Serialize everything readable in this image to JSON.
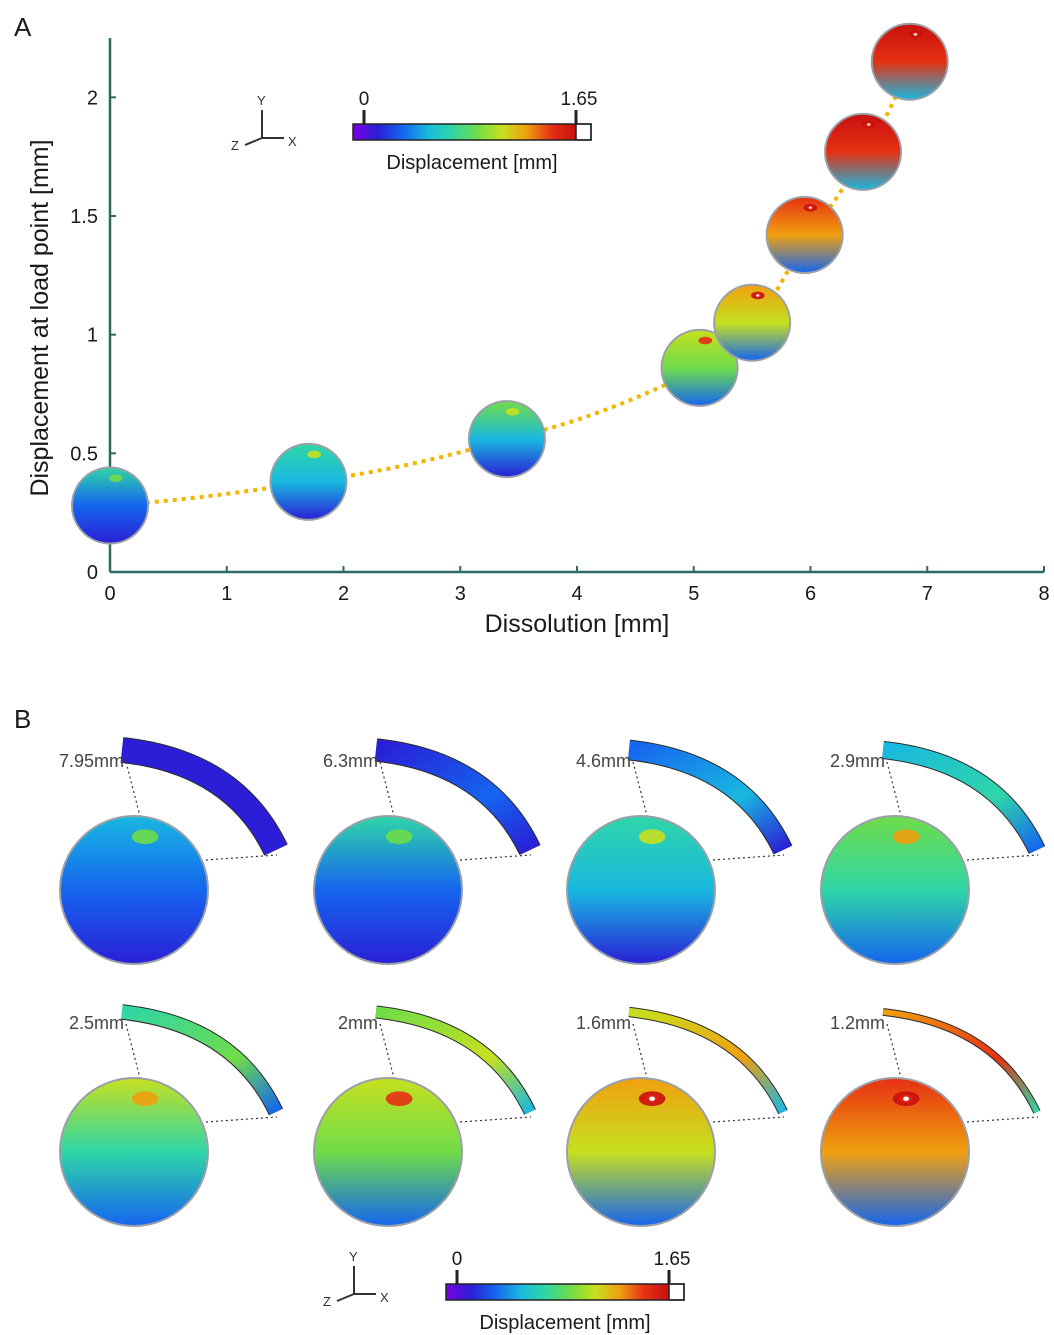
{
  "figure": {
    "panel_a_label": "A",
    "panel_b_label": "B"
  },
  "colors": {
    "axis": "#2b6b63",
    "trend": "#f2b600",
    "colormap": [
      "#7a00e6",
      "#2a1fd6",
      "#1565ef",
      "#19b8e0",
      "#2fd6a7",
      "#6fdc49",
      "#c6e01f",
      "#f0a010",
      "#e63012",
      "#c81010"
    ],
    "over_range": "#ffffff"
  },
  "colorbar": {
    "min_label": "0",
    "max_label": "1.65",
    "title": "Displacement [mm]"
  },
  "triad": {
    "y": "Y",
    "x": "X",
    "z": "Z"
  },
  "chart_data": {
    "type": "scatter",
    "xlabel": "Dissolution [mm]",
    "ylabel": "Displacement at load point [mm]",
    "xlim": [
      0,
      8
    ],
    "ylim": [
      0,
      2.25
    ],
    "xticks": [
      "0",
      "1",
      "2",
      "3",
      "4",
      "5",
      "6",
      "7",
      "8"
    ],
    "yticks": [
      "0",
      "0.5",
      "1",
      "1.5",
      "2"
    ],
    "grid": false,
    "points": [
      {
        "x": 0.0,
        "y": 0.28,
        "max_disp": 0.3
      },
      {
        "x": 1.7,
        "y": 0.38,
        "max_disp": 0.4
      },
      {
        "x": 3.4,
        "y": 0.56,
        "max_disp": 0.58
      },
      {
        "x": 5.05,
        "y": 0.86,
        "max_disp": 0.9
      },
      {
        "x": 5.5,
        "y": 1.05,
        "max_disp": 1.1
      },
      {
        "x": 5.95,
        "y": 1.42,
        "max_disp": 1.4
      },
      {
        "x": 6.45,
        "y": 1.77,
        "max_disp": 1.65
      },
      {
        "x": 6.85,
        "y": 2.15,
        "max_disp": 1.8
      }
    ]
  },
  "panel_b": {
    "shells": [
      {
        "label": "7.95mm",
        "level": 0.1
      },
      {
        "label": "6.3mm",
        "level": 0.18
      },
      {
        "label": "4.6mm",
        "level": 0.28
      },
      {
        "label": "2.9mm",
        "level": 0.4
      },
      {
        "label": "2.5mm",
        "level": 0.48
      },
      {
        "label": "2mm",
        "level": 0.58
      },
      {
        "label": "1.6mm",
        "level": 0.7
      },
      {
        "label": "1.2mm",
        "level": 0.82
      }
    ]
  }
}
